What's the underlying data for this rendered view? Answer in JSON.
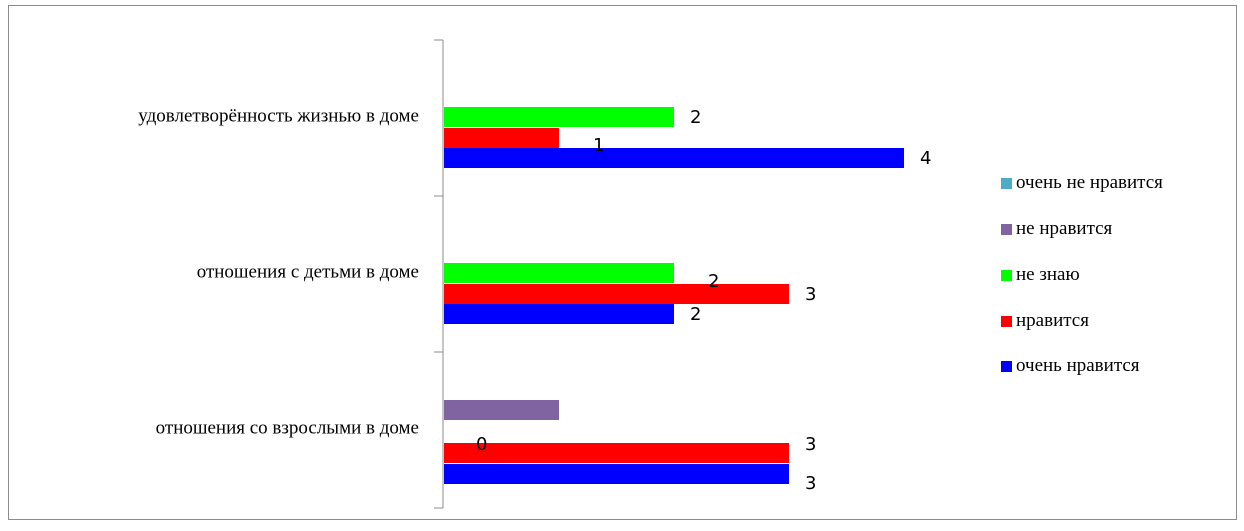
{
  "chart_data": {
    "type": "bar",
    "orientation": "horizontal",
    "categories": [
      "удовлетворённость жизнью в доме",
      "отношения с детьми в доме",
      "отношения со взрослыми в доме"
    ],
    "series": [
      {
        "name": "очень не нравится",
        "color": "#4bacc6",
        "values": [
          null,
          null,
          null
        ],
        "labels": [
          null,
          null,
          null
        ]
      },
      {
        "name": "не нравится",
        "color": "#8064a2",
        "values": [
          null,
          null,
          1
        ],
        "labels": [
          null,
          null,
          null
        ]
      },
      {
        "name": "не знаю",
        "color": "#00ff00",
        "values": [
          2,
          2,
          0
        ],
        "labels": [
          "2",
          "2",
          "0"
        ]
      },
      {
        "name": "нравится",
        "color": "#ff0000",
        "values": [
          1,
          3,
          3
        ],
        "labels": [
          "1",
          "3",
          "3"
        ]
      },
      {
        "name": "очень нравится",
        "color": "#0000ff",
        "values": [
          4,
          2,
          3
        ],
        "labels": [
          "4",
          "2",
          "3"
        ]
      }
    ],
    "xlim": [
      0,
      4
    ],
    "grid": false,
    "legend_position": "right",
    "title": "",
    "xlabel": "",
    "ylabel": ""
  }
}
